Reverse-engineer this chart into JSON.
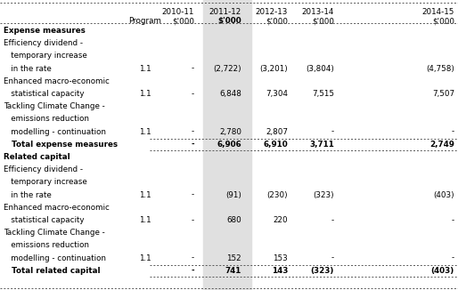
{
  "highlight_color": "#e0e0e0",
  "bg_color": "#ffffff",
  "text_color": "#000000",
  "border_color": "#555555",
  "rows": [
    {
      "label": "Expense measures",
      "indent": false,
      "bold": true,
      "program": "",
      "vals": [
        "",
        "",
        "",
        "",
        ""
      ],
      "section_header": true,
      "total_row": false
    },
    {
      "label": "Efficiency dividend -",
      "indent": false,
      "bold": false,
      "program": "",
      "vals": [
        "",
        "",
        "",
        "",
        ""
      ],
      "section_header": false,
      "total_row": false
    },
    {
      "label": "   temporary increase",
      "indent": true,
      "bold": false,
      "program": "",
      "vals": [
        "",
        "",
        "",
        "",
        ""
      ],
      "section_header": false,
      "total_row": false
    },
    {
      "label": "   in the rate",
      "indent": true,
      "bold": false,
      "program": "1.1",
      "vals": [
        "-",
        "(2,722)",
        "(3,201)",
        "(3,804)",
        "(4,758)"
      ],
      "section_header": false,
      "total_row": false
    },
    {
      "label": "Enhanced macro-economic",
      "indent": false,
      "bold": false,
      "program": "",
      "vals": [
        "",
        "",
        "",
        "",
        ""
      ],
      "section_header": false,
      "total_row": false
    },
    {
      "label": "   statistical capacity",
      "indent": true,
      "bold": false,
      "program": "1.1",
      "vals": [
        "-",
        "6,848",
        "7,304",
        "7,515",
        "7,507"
      ],
      "section_header": false,
      "total_row": false
    },
    {
      "label": "Tackling Climate Change -",
      "indent": false,
      "bold": false,
      "program": "",
      "vals": [
        "",
        "",
        "",
        "",
        ""
      ],
      "section_header": false,
      "total_row": false
    },
    {
      "label": "   emissions reduction",
      "indent": true,
      "bold": false,
      "program": "",
      "vals": [
        "",
        "",
        "",
        "",
        ""
      ],
      "section_header": false,
      "total_row": false
    },
    {
      "label": "   modelling - continuation",
      "indent": true,
      "bold": false,
      "program": "1.1",
      "vals": [
        "-",
        "2,780",
        "2,807",
        "-",
        "-"
      ],
      "section_header": false,
      "total_row": false
    },
    {
      "label": "   Total expense measures",
      "indent": true,
      "bold": true,
      "program": "",
      "vals": [
        "-",
        "6,906",
        "6,910",
        "3,711",
        "2,749"
      ],
      "section_header": false,
      "total_row": true
    },
    {
      "label": "Related capital",
      "indent": false,
      "bold": true,
      "program": "",
      "vals": [
        "",
        "",
        "",
        "",
        ""
      ],
      "section_header": true,
      "total_row": false
    },
    {
      "label": "Efficiency dividend -",
      "indent": false,
      "bold": false,
      "program": "",
      "vals": [
        "",
        "",
        "",
        "",
        ""
      ],
      "section_header": false,
      "total_row": false
    },
    {
      "label": "   temporary increase",
      "indent": true,
      "bold": false,
      "program": "",
      "vals": [
        "",
        "",
        "",
        "",
        ""
      ],
      "section_header": false,
      "total_row": false
    },
    {
      "label": "   in the rate",
      "indent": true,
      "bold": false,
      "program": "1.1",
      "vals": [
        "-",
        "(91)",
        "(230)",
        "(323)",
        "(403)"
      ],
      "section_header": false,
      "total_row": false
    },
    {
      "label": "Enhanced macro-economic",
      "indent": false,
      "bold": false,
      "program": "",
      "vals": [
        "",
        "",
        "",
        "",
        ""
      ],
      "section_header": false,
      "total_row": false
    },
    {
      "label": "   statistical capacity",
      "indent": true,
      "bold": false,
      "program": "1.1",
      "vals": [
        "-",
        "680",
        "220",
        "-",
        "-"
      ],
      "section_header": false,
      "total_row": false
    },
    {
      "label": "Tackling Climate Change -",
      "indent": false,
      "bold": false,
      "program": "",
      "vals": [
        "",
        "",
        "",
        "",
        ""
      ],
      "section_header": false,
      "total_row": false
    },
    {
      "label": "   emissions reduction",
      "indent": true,
      "bold": false,
      "program": "",
      "vals": [
        "",
        "",
        "",
        "",
        ""
      ],
      "section_header": false,
      "total_row": false
    },
    {
      "label": "   modelling - continuation",
      "indent": true,
      "bold": false,
      "program": "1.1",
      "vals": [
        "-",
        "152",
        "153",
        "-",
        "-"
      ],
      "section_header": false,
      "total_row": false
    },
    {
      "label": "   Total related capital",
      "indent": true,
      "bold": true,
      "program": "",
      "vals": [
        "-",
        "741",
        "143",
        "(323)",
        "(403)"
      ],
      "section_header": false,
      "total_row": true
    }
  ],
  "headers_row1": [
    "",
    "",
    "2010-11",
    "2011-12",
    "2012-13",
    "2013-14",
    "2014-15"
  ],
  "headers_row2": [
    "",
    "Program",
    "$'000",
    "$'000",
    "$'000",
    "$'000",
    "$'000"
  ]
}
